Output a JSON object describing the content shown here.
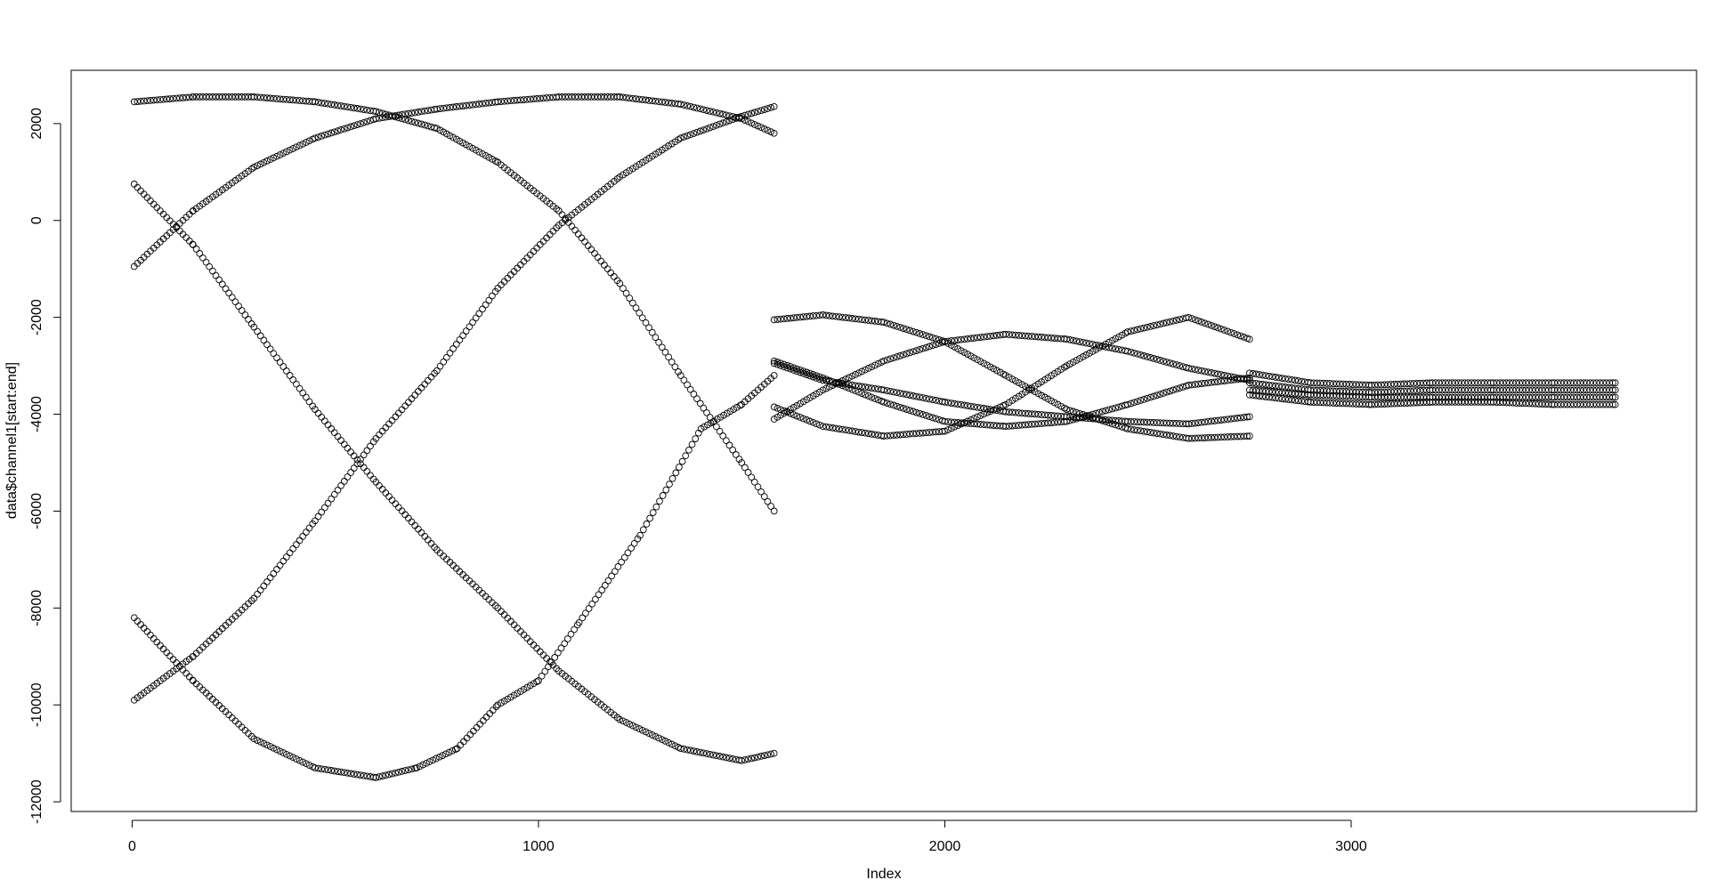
{
  "chart_data": {
    "type": "scatter",
    "title": "",
    "xlabel": "Index",
    "ylabel": "data$channel1[start:end]",
    "xlim": [
      -150,
      3850
    ],
    "ylim": [
      -12200,
      3100
    ],
    "grid": false,
    "legend": "none",
    "point_style": "open-circle",
    "point_color": "#000000",
    "x_ticks": [
      0,
      1000,
      2000,
      3000
    ],
    "x_tick_labels": [
      "0",
      "1000",
      "2000",
      "3000"
    ],
    "y_ticks": [
      -12000,
      -10000,
      -8000,
      -6000,
      -4000,
      -2000,
      0,
      2000
    ],
    "y_tick_labels": [
      "-12000",
      "-10000",
      "-8000",
      "-6000",
      "-4000",
      "-2000",
      "0",
      "2000"
    ],
    "series": [
      {
        "x": [
          5,
          150,
          300,
          450,
          600,
          750,
          900,
          1050,
          1200,
          1350,
          1500,
          1580
        ],
        "y": [
          2450,
          2550,
          2550,
          2450,
          2250,
          1900,
          1200,
          200,
          -1300,
          -3200,
          -5000,
          -6000
        ]
      },
      {
        "x": [
          5,
          150,
          300,
          450,
          600,
          750,
          900,
          1050,
          1200,
          1350,
          1500,
          1580
        ],
        "y": [
          -950,
          200,
          1100,
          1700,
          2100,
          2300,
          2450,
          2550,
          2550,
          2400,
          2100,
          1800
        ]
      },
      {
        "x": [
          5,
          150,
          300,
          450,
          600,
          750,
          900,
          1050,
          1200,
          1350,
          1500,
          1580
        ],
        "y": [
          750,
          -500,
          -2200,
          -3900,
          -5400,
          -6800,
          -8000,
          -9300,
          -10300,
          -10900,
          -11150,
          -11000
        ]
      },
      {
        "x": [
          5,
          150,
          300,
          450,
          600,
          750,
          900,
          1050,
          1200,
          1350,
          1500,
          1580
        ],
        "y": [
          -9900,
          -9000,
          -7800,
          -6200,
          -4500,
          -3100,
          -1400,
          -100,
          900,
          1700,
          2150,
          2350
        ]
      },
      {
        "x": [
          5,
          150,
          300,
          450,
          600,
          700,
          800,
          900,
          1000,
          1100,
          1250,
          1400,
          1500,
          1580
        ],
        "y": [
          -8200,
          -9500,
          -10700,
          -11300,
          -11500,
          -11300,
          -10900,
          -10000,
          -9500,
          -8300,
          -6500,
          -4300,
          -3800,
          -3200
        ]
      },
      {
        "x": [
          1580,
          1700,
          1850,
          2000,
          2150,
          2300,
          2450,
          2600,
          2750
        ],
        "y": [
          -2050,
          -1950,
          -2100,
          -2500,
          -3200,
          -3900,
          -4300,
          -4500,
          -4450
        ]
      },
      {
        "x": [
          1580,
          1700,
          1850,
          2000,
          2150,
          2300,
          2450,
          2600,
          2750
        ],
        "y": [
          -4100,
          -3500,
          -2900,
          -2500,
          -2350,
          -2450,
          -2700,
          -3050,
          -3300
        ]
      },
      {
        "x": [
          1580,
          1700,
          1850,
          2000,
          2150,
          2300,
          2450,
          2600,
          2750
        ],
        "y": [
          -2900,
          -3250,
          -3750,
          -4150,
          -4250,
          -4150,
          -3800,
          -3400,
          -3250
        ]
      },
      {
        "x": [
          1580,
          1700,
          1850,
          2000,
          2150,
          2300,
          2450,
          2600,
          2750
        ],
        "y": [
          -3850,
          -4250,
          -4450,
          -4350,
          -3800,
          -3000,
          -2300,
          -2000,
          -2450
        ]
      },
      {
        "x": [
          1580,
          1700,
          1850,
          2000,
          2150,
          2300,
          2450,
          2600,
          2750
        ],
        "y": [
          -2950,
          -3300,
          -3500,
          -3750,
          -3950,
          -4050,
          -4150,
          -4200,
          -4050
        ]
      },
      {
        "x": [
          2750,
          2900,
          3050,
          3200,
          3350,
          3500,
          3650
        ],
        "y": [
          -3150,
          -3350,
          -3400,
          -3350,
          -3350,
          -3350,
          -3350
        ]
      },
      {
        "x": [
          2750,
          2900,
          3050,
          3200,
          3350,
          3500,
          3650
        ],
        "y": [
          -3350,
          -3500,
          -3550,
          -3500,
          -3500,
          -3500,
          -3500
        ]
      },
      {
        "x": [
          2750,
          2900,
          3050,
          3200,
          3350,
          3500,
          3650
        ],
        "y": [
          -3500,
          -3600,
          -3650,
          -3650,
          -3650,
          -3650,
          -3650
        ]
      },
      {
        "x": [
          2750,
          2900,
          3050,
          3200,
          3350,
          3500,
          3650
        ],
        "y": [
          -3600,
          -3750,
          -3800,
          -3750,
          -3750,
          -3800,
          -3800
        ]
      }
    ]
  }
}
